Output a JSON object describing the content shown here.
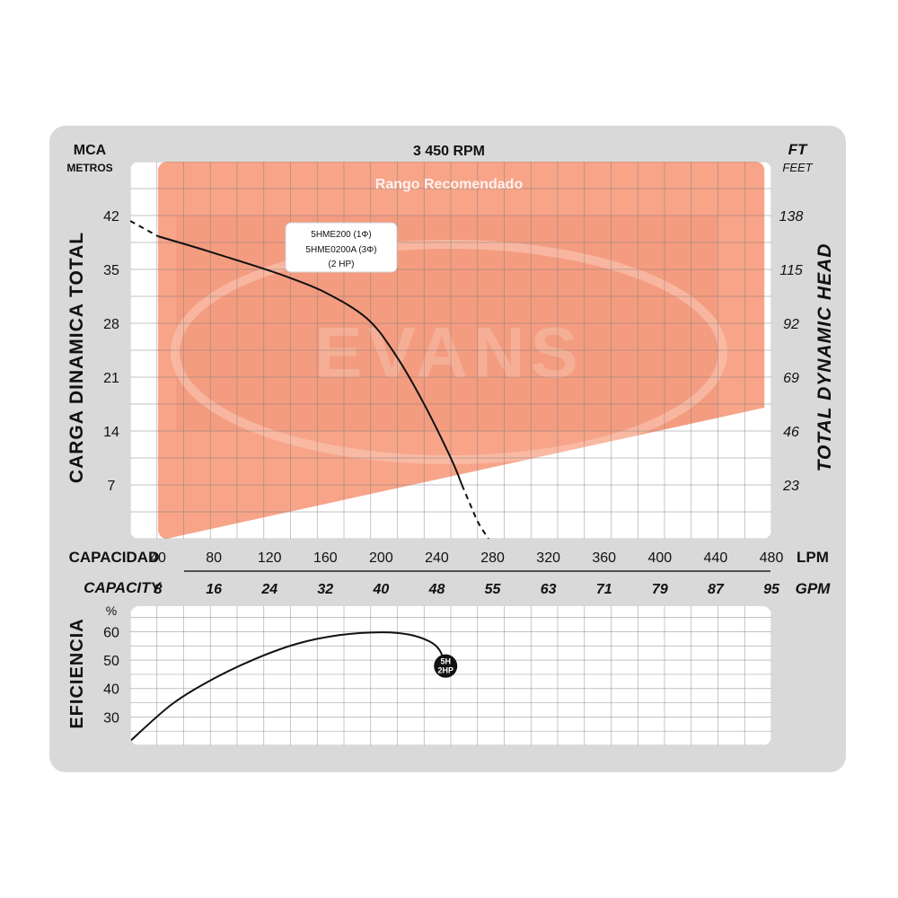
{
  "chart_data": [
    {
      "type": "line",
      "title": "3 450 RPM",
      "left_axis": {
        "unit": "MCA",
        "unit_sub": "METROS",
        "label": "CARGA DINAMICA TOTAL",
        "ticks": [
          42,
          35,
          28,
          21,
          14,
          7
        ],
        "ylim": [
          0,
          49
        ]
      },
      "right_axis": {
        "unit": "FT",
        "unit_sub": "FEET",
        "label": "TOTAL DYNAMIC HEAD",
        "ticks": [
          138,
          115,
          92,
          69,
          46,
          23
        ]
      },
      "x_axis_lpm": {
        "label": "CAPACIDAD",
        "unit": "LPM",
        "ticks": [
          40,
          80,
          120,
          160,
          200,
          240,
          280,
          320,
          360,
          400,
          440,
          480
        ],
        "xlim": [
          20,
          480
        ]
      },
      "x_axis_gpm": {
        "label": "CAPACITY",
        "unit": "GPM",
        "ticks": [
          "8",
          "16",
          "24",
          "32",
          "40",
          "48",
          "55",
          "63",
          "71",
          "79",
          "87",
          "95"
        ]
      },
      "recommended_range": {
        "label": "Rango Recomendado",
        "lpm": [
          40,
          475
        ],
        "lower_bound_at_40": 0,
        "lower_bound_at_475": 17.3
      },
      "watermark": "EVANS",
      "series": [
        {
          "label_lines": [
            "5HME200 (1Φ)",
            "5HME0200A (3Φ)",
            "(2 HP)"
          ],
          "x": [
            20,
            40,
            70,
            100,
            130,
            160,
            190,
            210,
            230,
            250,
            258,
            265,
            270,
            277
          ],
          "y": [
            41.3,
            39.3,
            37.7,
            36.0,
            34.2,
            32.0,
            28.6,
            24.0,
            17.8,
            10.5,
            7.0,
            4.0,
            2.0,
            0
          ],
          "solid_from": 40,
          "solid_to": 258
        }
      ],
      "grid": true
    },
    {
      "type": "line",
      "y_axis": {
        "unit": "%",
        "label": "EFICIENCIA",
        "ticks": [
          60,
          50,
          40,
          30
        ],
        "ylim": [
          20,
          69
        ]
      },
      "series": [
        {
          "marker": [
            "5H",
            "2HP"
          ],
          "x": [
            20,
            50,
            80,
            110,
            140,
            170,
            200,
            220,
            235,
            242,
            245
          ],
          "y": [
            21.5,
            34.5,
            43.5,
            50.5,
            55.8,
            58.8,
            59.8,
            59.0,
            56.5,
            53.5,
            49.5
          ]
        }
      ],
      "grid": true
    }
  ]
}
